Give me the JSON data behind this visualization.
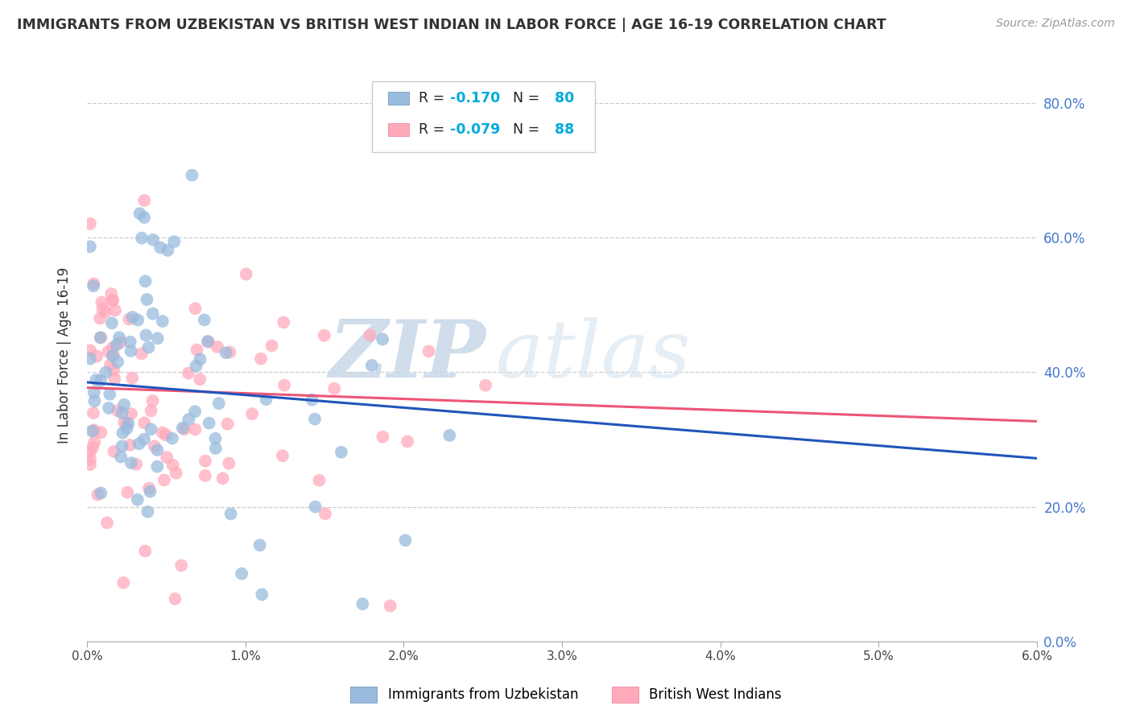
{
  "title": "IMMIGRANTS FROM UZBEKISTAN VS BRITISH WEST INDIAN IN LABOR FORCE | AGE 16-19 CORRELATION CHART",
  "source": "Source: ZipAtlas.com",
  "ylabel": "In Labor Force | Age 16-19",
  "xlim": [
    0.0,
    0.06
  ],
  "ylim": [
    0.0,
    0.85
  ],
  "xticks": [
    0.0,
    0.01,
    0.02,
    0.03,
    0.04,
    0.05,
    0.06
  ],
  "xticklabels": [
    "0.0%",
    "1.0%",
    "2.0%",
    "3.0%",
    "4.0%",
    "5.0%",
    "6.0%"
  ],
  "yticks": [
    0.0,
    0.2,
    0.4,
    0.6,
    0.8
  ],
  "yticklabels": [
    "0.0%",
    "20.0%",
    "40.0%",
    "60.0%",
    "80.0%"
  ],
  "blue_color": "#99BBDD",
  "pink_color": "#FFAABB",
  "blue_line_color": "#2255BB",
  "pink_line_color": "#EE5577",
  "R_blue": -0.17,
  "N_blue": 80,
  "R_pink": -0.079,
  "N_pink": 88,
  "legend_label_blue": "Immigrants from Uzbekistan",
  "legend_label_pink": "British West Indians",
  "watermark_text": "ZIP",
  "watermark_text2": "atlas",
  "background_color": "#ffffff",
  "grid_color": "#cccccc",
  "trend_blue_y0": 0.385,
  "trend_blue_y1": 0.272,
  "trend_pink_y0": 0.377,
  "trend_pink_y1": 0.327
}
